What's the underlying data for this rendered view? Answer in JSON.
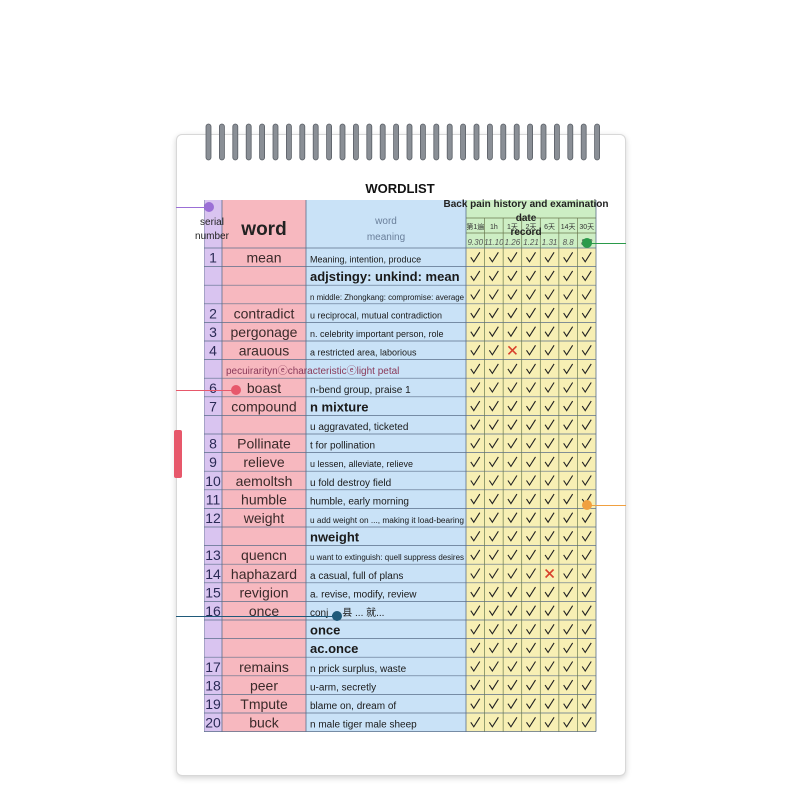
{
  "title": "WORDLIST",
  "headers": {
    "serial_line1": "serial",
    "serial_line2": "number",
    "word": "word",
    "meaning_line1": "word",
    "meaning_line2": "meaning",
    "record_line1": "Back pain history and examination date",
    "record_line2": "record"
  },
  "review_columns": [
    {
      "label": "第1遍",
      "date": "9.30"
    },
    {
      "label": "1h",
      "date": "11.10"
    },
    {
      "label": "1天",
      "date": "1.26"
    },
    {
      "label": "2天",
      "date": "1.21"
    },
    {
      "label": "6天",
      "date": "1.31"
    },
    {
      "label": "14天",
      "date": "8.8"
    },
    {
      "label": "30天",
      "date": "8.8"
    }
  ],
  "rows": [
    {
      "num": "1",
      "word": "mean",
      "meaning": "Meaning, intention, produce",
      "marks": "vvvvvvv"
    },
    {
      "num": "",
      "word": "",
      "meaning": "adjstingy: unkind: mean",
      "marks": "vvvvvvv"
    },
    {
      "num": "",
      "word": "",
      "meaning": "n middle: Zhongkang: compromise: average",
      "marks": "vvvvvvv"
    },
    {
      "num": "2",
      "word": "contradict",
      "meaning": "u reciprocal, mutual contradiction",
      "marks": "vvvvvvv"
    },
    {
      "num": "3",
      "word": "pergonage",
      "meaning": "n. celebrity important person, role",
      "marks": "vvvvvvv"
    },
    {
      "num": "4",
      "word": "arauous",
      "meaning": "a restricted area, laborious",
      "marks": "vvxvvvv"
    },
    {
      "num": "",
      "word": "pecuiraritynⓔcharacteristicⓔlight petal",
      "meaning": "",
      "marks": "vvvvvvv"
    },
    {
      "num": "6",
      "word": "boast",
      "meaning": "n-bend group, praise 1",
      "marks": "vvvvvvv"
    },
    {
      "num": "7",
      "word": "compound",
      "meaning": "n mixture",
      "marks": "vvvvvvv"
    },
    {
      "num": "",
      "word": "",
      "meaning": "u aggravated, ticketed",
      "marks": "vvvvvvv"
    },
    {
      "num": "8",
      "word": "Pollinate",
      "meaning": "t for pollination",
      "marks": "vvvvvvv"
    },
    {
      "num": "9",
      "word": "relieve",
      "meaning": "u lessen, alleviate, relieve",
      "marks": "vvvvvvv"
    },
    {
      "num": "10",
      "word": "aemoltsh",
      "meaning": "u fold destroy field",
      "marks": "vvvvvvv"
    },
    {
      "num": "11",
      "word": "humble",
      "meaning": "humble, early morning",
      "marks": "vvvvvvv"
    },
    {
      "num": "12",
      "word": "weight",
      "meaning": "u add weight on ..., making it load-bearing",
      "marks": "vvvvvvv"
    },
    {
      "num": "",
      "word": "",
      "meaning": "nweight",
      "marks": "vvvvvvv"
    },
    {
      "num": "13",
      "word": "quencn",
      "meaning": "u want to extinguish: quell suppress desires",
      "marks": "vvvvvvv"
    },
    {
      "num": "14",
      "word": "haphazard",
      "meaning": "a casual, full of plans",
      "marks": "vvvvxvv"
    },
    {
      "num": "15",
      "word": "revigion",
      "meaning": "a. revise, modify, review",
      "marks": "vvvvvvv"
    },
    {
      "num": "16",
      "word": "once",
      "meaning": "conj ... 县 ... 就...",
      "marks": "vvvvvvv"
    },
    {
      "num": "",
      "word": "",
      "meaning": "once",
      "marks": "vvvvvvv"
    },
    {
      "num": "",
      "word": "",
      "meaning": "ac.once",
      "marks": "vvvvvvv"
    },
    {
      "num": "17",
      "word": "remains",
      "meaning": "n prick surplus, waste",
      "marks": "vvvvvvv"
    },
    {
      "num": "18",
      "word": "peer",
      "meaning": "u-arm, secretly",
      "marks": "vvvvvvv"
    },
    {
      "num": "19",
      "word": "Tmpute",
      "meaning": "blame on, dream of",
      "marks": "vvvvvvv"
    },
    {
      "num": "20",
      "word": "buck",
      "meaning": "n male tiger male sheep",
      "marks": "vvvvvvv"
    }
  ],
  "colors": {
    "serial_col": "#d9c4f0",
    "word_col": "#f7b8bf",
    "meaning_col": "#c9e2f7",
    "record_col": "#f7efb4",
    "record_header": "#cdeec4",
    "cross": "#d8402c"
  }
}
